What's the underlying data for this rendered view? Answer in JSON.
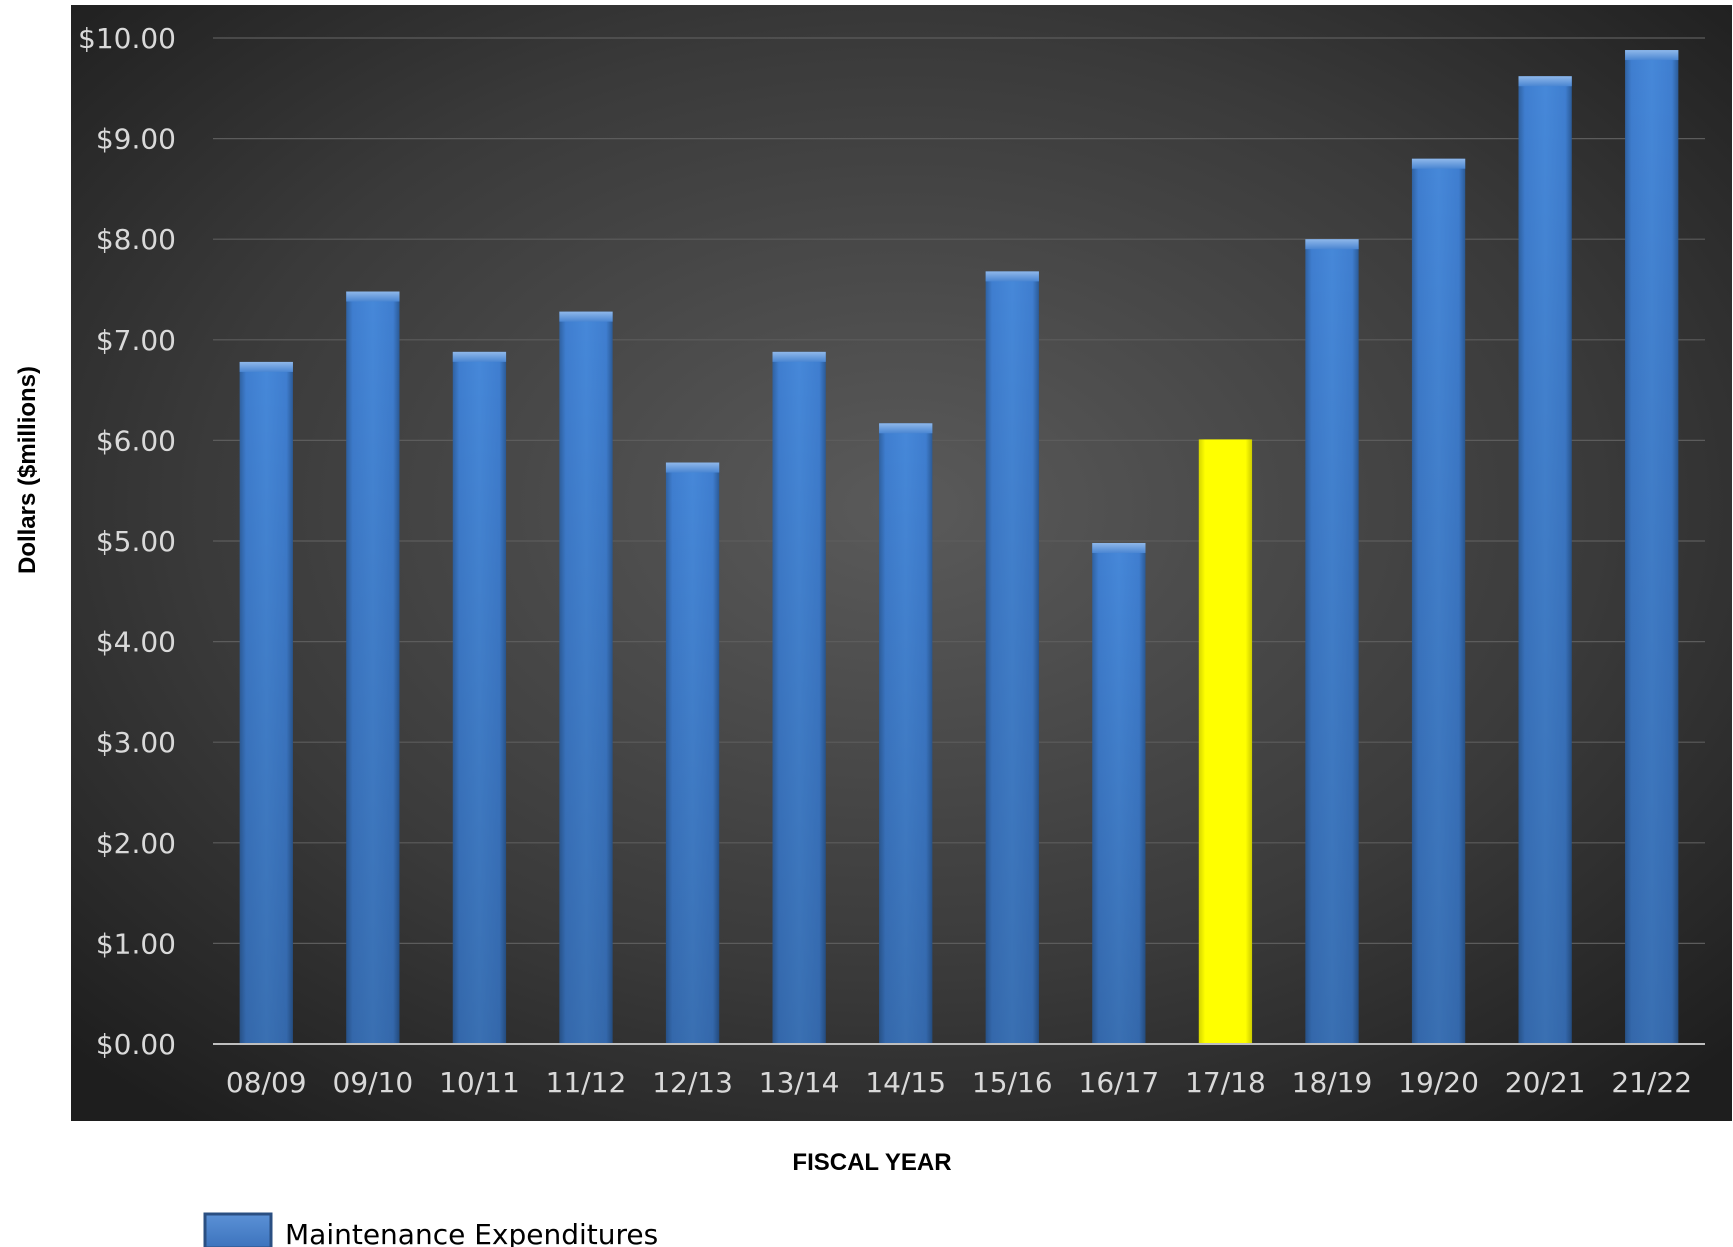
{
  "chart_data": {
    "type": "bar",
    "categories": [
      "08/09",
      "09/10",
      "10/11",
      "11/12",
      "12/13",
      "13/14",
      "14/15",
      "15/16",
      "16/17",
      "17/18",
      "18/19",
      "19/20",
      "20/21",
      "21/22"
    ],
    "series": [
      {
        "name": "Maintenance Expenditures",
        "values": [
          6.78,
          7.48,
          6.88,
          7.28,
          5.78,
          6.88,
          6.17,
          7.68,
          4.98,
          6.01,
          8.0,
          8.8,
          9.62,
          9.88
        ]
      }
    ],
    "highlight": {
      "category": "17/18",
      "color": "#ffff00"
    },
    "xlabel": "FISCAL YEAR",
    "ylabel": "Dollars ($millions)",
    "ylim": [
      0,
      10
    ],
    "y_ticks": [
      "$0.00",
      "$1.00",
      "$2.00",
      "$3.00",
      "$4.00",
      "$5.00",
      "$6.00",
      "$7.00",
      "$8.00",
      "$9.00",
      "$10.00"
    ],
    "grid": true,
    "legend": {
      "position": "bottom-left",
      "label": "Maintenance Expenditures"
    },
    "colors": {
      "bar": "#3d7cc9",
      "highlight": "#ffff00",
      "background_center": "#555555",
      "background_edge": "#1f1f1f",
      "gridline": "#5a5a5a",
      "tick_text": "#d9d9d9"
    }
  }
}
